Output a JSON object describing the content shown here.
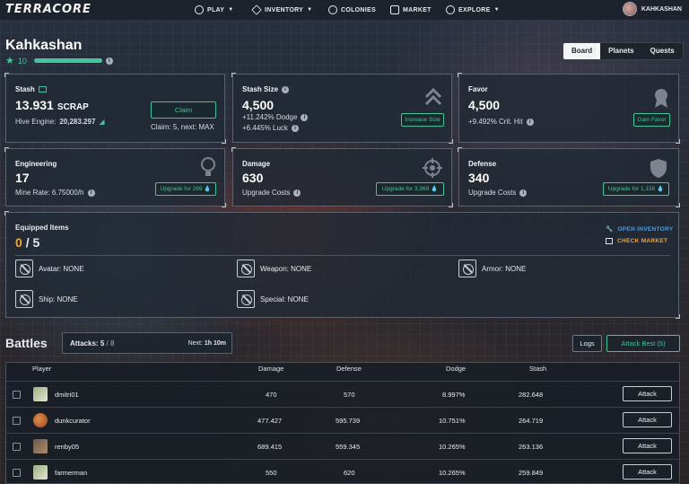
{
  "nav": {
    "logo": "TERRACORE",
    "items": [
      {
        "label": "PLAY",
        "icon": "play-icon",
        "caret": true
      },
      {
        "label": "INVENTORY",
        "icon": "mountain-icon",
        "caret": true
      },
      {
        "label": "COLONIES",
        "icon": "planets-icon",
        "caret": false
      },
      {
        "label": "MARKET",
        "icon": "store-icon",
        "caret": false
      },
      {
        "label": "EXPLORE",
        "icon": "compass-icon",
        "caret": true
      }
    ],
    "username": "KAHKASHAN"
  },
  "player": {
    "name": "Kahkashan",
    "level": "10",
    "tabs": [
      "Board",
      "Planets",
      "Quests"
    ],
    "active_tab": "Board"
  },
  "cards": {
    "stash": {
      "title": "Stash",
      "value": "13.931",
      "unit": "SCRAP",
      "hive_label": "Hive Engine:",
      "hive_value": "20,283.297",
      "claim_btn": "Claim",
      "claim_info": "Claim: 5, next: MAX"
    },
    "stash_size": {
      "title": "Stash Size",
      "value": "4,500",
      "line1": "+11.242% Dodge",
      "line2": "+6.445% Luck",
      "button": "Increase Size"
    },
    "favor": {
      "title": "Favor",
      "value": "4,500",
      "line1": "+9.492% Crit. Hit",
      "button": "Gain Favor"
    },
    "engineering": {
      "title": "Engineering",
      "value": "17",
      "line1": "Mine Rate: 6.75000/h",
      "button": "Upgrade for 289"
    },
    "damage": {
      "title": "Damage",
      "value": "630",
      "line1": "Upgrade Costs",
      "button": "Upgrade for 3,969"
    },
    "defense": {
      "title": "Defense",
      "value": "340",
      "line1": "Upgrade Costs",
      "button": "Upgrade for 1,156"
    }
  },
  "equipped": {
    "title": "Equipped Items",
    "count": "0",
    "total": "/ 5",
    "open_inventory": "OPEN INVENTORY",
    "check_market": "CHECK MARKET",
    "slots": {
      "avatar": "Avatar: NONE",
      "weapon": "Weapon: NONE",
      "armor": "Armor: NONE",
      "ship": "Ship: NONE",
      "special": "Special: NONE"
    }
  },
  "battles": {
    "title": "Battles",
    "attacks_label": "Attacks:",
    "attacks_value": "5",
    "attacks_max": "/ 8",
    "next_label": "Next:",
    "next_value": "1h 10m",
    "logs_btn": "Logs",
    "attack_best_btn": "Attack Best (5)",
    "columns": [
      "Player",
      "Damage",
      "Defense",
      "Dodge",
      "Stash"
    ],
    "rows": [
      {
        "player": "dmitri01",
        "damage": "470",
        "defense": "570",
        "dodge": "8.997%",
        "stash": "282.648",
        "action": "Attack"
      },
      {
        "player": "dunkcurator",
        "damage": "477.427",
        "defense": "595.739",
        "dodge": "10.751%",
        "stash": "264.719",
        "action": "Attack"
      },
      {
        "player": "renby05",
        "damage": "689.415",
        "defense": "559.345",
        "dodge": "10.265%",
        "stash": "263.136",
        "action": "Attack"
      },
      {
        "player": "farmerman",
        "damage": "550",
        "defense": "620",
        "dodge": "10.265%",
        "stash": "259.849",
        "action": "Attack"
      }
    ]
  },
  "colors": {
    "accent_green": "#3ec49a",
    "accent_orange": "#f0a63a",
    "link_blue": "#4a9be0"
  }
}
